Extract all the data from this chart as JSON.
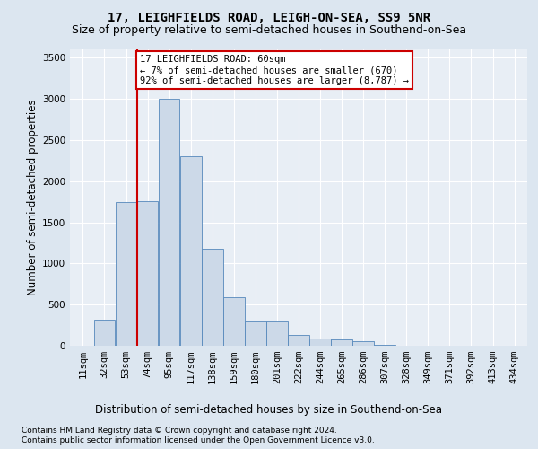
{
  "title": "17, LEIGHFIELDS ROAD, LEIGH-ON-SEA, SS9 5NR",
  "subtitle": "Size of property relative to semi-detached houses in Southend-on-Sea",
  "xlabel": "Distribution of semi-detached houses by size in Southend-on-Sea",
  "ylabel": "Number of semi-detached properties",
  "footnote1": "Contains HM Land Registry data © Crown copyright and database right 2024.",
  "footnote2": "Contains public sector information licensed under the Open Government Licence v3.0.",
  "bar_labels": [
    "11sqm",
    "32sqm",
    "53sqm",
    "74sqm",
    "95sqm",
    "117sqm",
    "138sqm",
    "159sqm",
    "180sqm",
    "201sqm",
    "222sqm",
    "244sqm",
    "265sqm",
    "286sqm",
    "307sqm",
    "328sqm",
    "349sqm",
    "371sqm",
    "392sqm",
    "413sqm",
    "434sqm"
  ],
  "bar_values": [
    5,
    320,
    1750,
    1760,
    3000,
    2300,
    1180,
    590,
    300,
    295,
    135,
    90,
    80,
    50,
    10,
    5,
    3,
    2,
    1,
    1,
    0
  ],
  "bar_color": "#ccd9e8",
  "bar_edge_color": "#5588bb",
  "vline_color": "#cc0000",
  "vline_pos": 2.5,
  "annotation_text": "17 LEIGHFIELDS ROAD: 60sqm\n← 7% of semi-detached houses are smaller (670)\n92% of semi-detached houses are larger (8,787) →",
  "annotation_box_color": "#ffffff",
  "annotation_box_edge": "#cc0000",
  "ylim": [
    0,
    3600
  ],
  "yticks": [
    0,
    500,
    1000,
    1500,
    2000,
    2500,
    3000,
    3500
  ],
  "bg_color": "#dce6f0",
  "plot_bg_color": "#e8eef5",
  "grid_color": "#ffffff",
  "title_fontsize": 10,
  "subtitle_fontsize": 9,
  "axis_label_fontsize": 8.5,
  "tick_fontsize": 7.5,
  "footnote_fontsize": 6.5
}
